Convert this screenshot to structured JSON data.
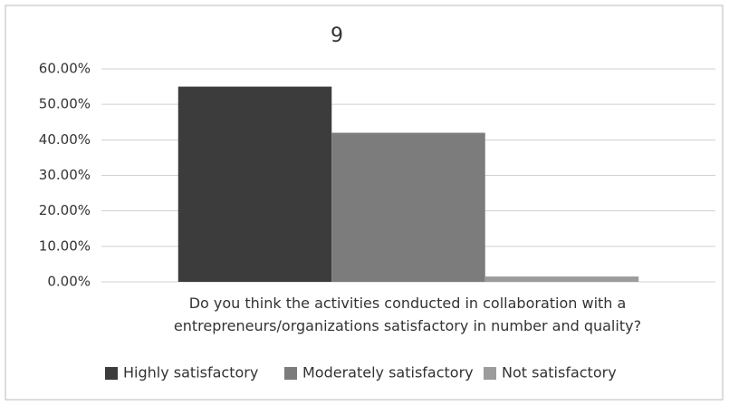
{
  "chart_data": {
    "type": "bar",
    "title": "9",
    "categories": [
      "Do you think the activities conducted in collaboration with a entrepreneurs/organizations satisfactory in number and quality?"
    ],
    "series": [
      {
        "name": "Highly satisfactory",
        "color": "#3c3c3c",
        "values": [
          55
        ]
      },
      {
        "name": "Moderately satisfactory",
        "color": "#7c7c7c",
        "values": [
          42
        ]
      },
      {
        "name": "Not satisfactory",
        "color": "#9c9c9c",
        "values": [
          1.5
        ]
      }
    ],
    "ylim": [
      0,
      60
    ],
    "yticks": [
      {
        "value": 0,
        "label": "0.00%"
      },
      {
        "value": 10,
        "label": "10.00%"
      },
      {
        "value": 20,
        "label": "20.00%"
      },
      {
        "value": 30,
        "label": "30.00%"
      },
      {
        "value": 40,
        "label": "40.00%"
      },
      {
        "value": 50,
        "label": "50.00%"
      },
      {
        "value": 60,
        "label": "60.00%"
      }
    ],
    "grid": true,
    "legend": "bottom"
  }
}
